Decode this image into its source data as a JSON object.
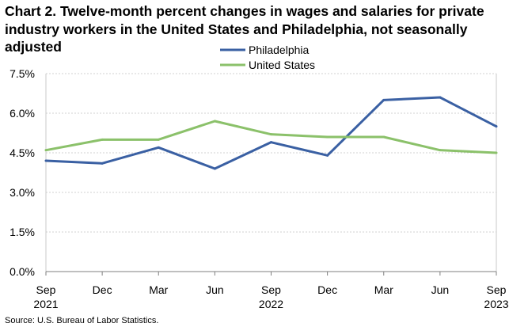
{
  "chart_data": {
    "type": "line",
    "title": "Chart 2. Twelve-month percent changes in wages and salaries for private industry workers in the United States and Philadelphia, not seasonally adjusted",
    "categories": [
      "Sep",
      "Dec",
      "Mar",
      "Jun",
      "Sep",
      "Dec",
      "Mar",
      "Jun",
      "Sep"
    ],
    "year_labels": [
      "2021",
      "",
      "",
      "",
      "2022",
      "",
      "",
      "",
      "2023"
    ],
    "yticks": [
      "0.0%",
      "1.5%",
      "3.0%",
      "4.5%",
      "6.0%",
      "7.5%"
    ],
    "ytick_values": [
      0,
      1.5,
      3.0,
      4.5,
      6.0,
      7.5
    ],
    "ylim": [
      0,
      7.5
    ],
    "grid": true,
    "legend": "top-center",
    "series": [
      {
        "name": "Philadelphia",
        "color": "#3a60a3",
        "values": [
          4.2,
          4.1,
          4.7,
          3.9,
          4.9,
          4.4,
          6.5,
          6.6,
          5.5
        ]
      },
      {
        "name": "United States",
        "color": "#8bc16a",
        "values": [
          4.6,
          5.0,
          5.0,
          5.7,
          5.2,
          5.1,
          5.1,
          4.6,
          4.5
        ]
      }
    ],
    "source": "Source: U.S. Bureau of Labor Statistics."
  }
}
